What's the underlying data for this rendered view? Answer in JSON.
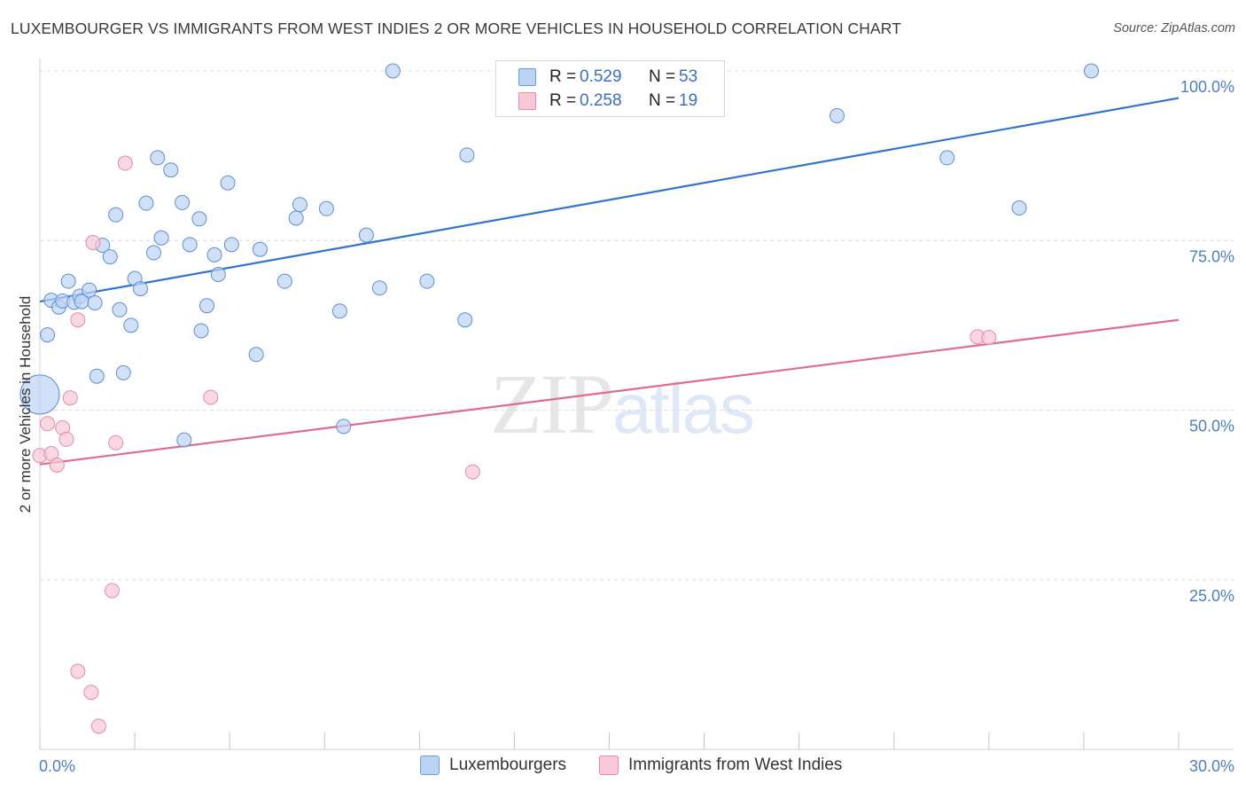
{
  "title": "LUXEMBOURGER VS IMMIGRANTS FROM WEST INDIES 2 OR MORE VEHICLES IN HOUSEHOLD CORRELATION CHART",
  "source": "Source: ZipAtlas.com",
  "watermark": {
    "zip": "ZIP",
    "atlas": "atlas"
  },
  "legend": [
    {
      "r_label": "R =",
      "r_value": "0.529",
      "n_label": "N =",
      "n_value": "53",
      "color": "#a9c8f0"
    },
    {
      "r_label": "R =",
      "r_value": "0.258",
      "n_label": "N =",
      "n_value": "19",
      "color": "#f5b8cb"
    }
  ],
  "bottom_legend": [
    "Luxembourgers",
    "Immigrants from West Indies"
  ],
  "chart_data": {
    "type": "scatter",
    "ylabel": "2 or more Vehicles in Household",
    "xlim": [
      0,
      30
    ],
    "ylim": [
      0,
      100
    ],
    "x_tick_labels": [
      "0.0%",
      "30.0%"
    ],
    "y_tick_labels": [
      "100.0%",
      "75.0%",
      "50.0%",
      "25.0%"
    ],
    "y_ticks": [
      100,
      75,
      50,
      25
    ],
    "grid": true,
    "series": [
      {
        "name": "Luxembourgers",
        "color": "#5b8fd6",
        "fill": "#bcd4f3",
        "trend": {
          "x": [
            0,
            30
          ],
          "y": [
            66.0,
            96.0
          ],
          "color": "#2f74d0"
        },
        "points": [
          [
            0.0,
            52.3,
            "big"
          ],
          [
            0.2,
            61.1
          ],
          [
            0.3,
            66.2
          ],
          [
            0.5,
            65.2
          ],
          [
            0.6,
            66.1
          ],
          [
            0.75,
            69.0
          ],
          [
            0.9,
            65.9
          ],
          [
            1.05,
            66.8
          ],
          [
            1.1,
            66.0
          ],
          [
            1.3,
            67.7
          ],
          [
            1.45,
            65.8
          ],
          [
            1.5,
            55.0
          ],
          [
            1.65,
            74.3
          ],
          [
            1.85,
            72.6
          ],
          [
            2.0,
            78.8
          ],
          [
            2.1,
            64.8
          ],
          [
            2.2,
            55.5
          ],
          [
            2.4,
            62.5
          ],
          [
            2.5,
            69.4
          ],
          [
            2.65,
            67.9
          ],
          [
            2.8,
            80.5
          ],
          [
            3.0,
            73.2
          ],
          [
            3.1,
            87.2
          ],
          [
            3.2,
            75.4
          ],
          [
            3.45,
            85.4
          ],
          [
            3.75,
            80.6
          ],
          [
            3.8,
            45.6
          ],
          [
            3.95,
            74.4
          ],
          [
            4.2,
            78.2
          ],
          [
            4.25,
            61.7
          ],
          [
            4.4,
            65.4
          ],
          [
            4.6,
            72.9
          ],
          [
            4.7,
            70.0
          ],
          [
            4.95,
            83.5
          ],
          [
            5.05,
            74.4
          ],
          [
            5.7,
            58.2
          ],
          [
            5.8,
            73.7
          ],
          [
            6.45,
            69.0
          ],
          [
            6.75,
            78.3
          ],
          [
            6.85,
            80.3
          ],
          [
            7.55,
            79.7
          ],
          [
            7.9,
            64.6
          ],
          [
            8.0,
            47.6
          ],
          [
            8.6,
            75.8
          ],
          [
            8.95,
            68.0
          ],
          [
            9.3,
            100.0
          ],
          [
            10.2,
            69.0
          ],
          [
            11.2,
            63.3
          ],
          [
            11.25,
            87.6
          ],
          [
            21.0,
            93.4
          ],
          [
            23.9,
            87.2
          ],
          [
            25.8,
            79.8
          ],
          [
            27.7,
            100.0
          ]
        ]
      },
      {
        "name": "Immigrants from West Indies",
        "color": "#e68aa6",
        "fill": "#f8c8d6",
        "trend": {
          "x": [
            0,
            30
          ],
          "y": [
            42.0,
            63.3
          ],
          "color": "#e06a90"
        },
        "points": [
          [
            0.0,
            43.3
          ],
          [
            0.2,
            48.0
          ],
          [
            0.3,
            43.6
          ],
          [
            0.45,
            41.9
          ],
          [
            0.6,
            47.4
          ],
          [
            0.7,
            45.7
          ],
          [
            0.8,
            51.8
          ],
          [
            1.0,
            11.5
          ],
          [
            1.0,
            63.3
          ],
          [
            1.35,
            8.4
          ],
          [
            1.4,
            74.7
          ],
          [
            1.55,
            3.4
          ],
          [
            1.9,
            23.4
          ],
          [
            2.0,
            45.2
          ],
          [
            2.25,
            86.4
          ],
          [
            4.5,
            51.9
          ],
          [
            11.4,
            40.9
          ],
          [
            24.7,
            60.8
          ],
          [
            25.0,
            60.7
          ]
        ]
      }
    ]
  }
}
